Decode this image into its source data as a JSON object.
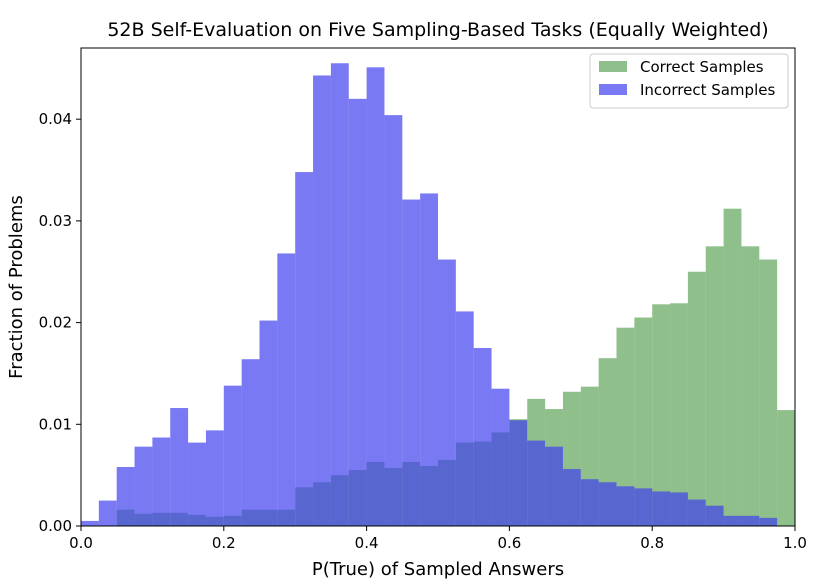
{
  "chart_data": {
    "type": "histogram",
    "title": "52B Self-Evaluation on Five Sampling-Based Tasks (Equally Weighted)",
    "xlabel": "P(True) of Sampled Answers",
    "ylabel": "Fraction of Problems",
    "xlim": [
      0.0,
      1.0
    ],
    "ylim": [
      0.0,
      0.047
    ],
    "xticks": [
      "0.0",
      "0.2",
      "0.4",
      "0.6",
      "0.8",
      "1.0"
    ],
    "xtick_values": [
      0.0,
      0.2,
      0.4,
      0.6,
      0.8,
      1.0
    ],
    "yticks": [
      "0.00",
      "0.01",
      "0.02",
      "0.03",
      "0.04"
    ],
    "ytick_values": [
      0.0,
      0.01,
      0.02,
      0.03,
      0.04
    ],
    "bin_width": 0.025,
    "bin_starts": [
      0.0,
      0.025,
      0.05,
      0.075,
      0.1,
      0.125,
      0.15,
      0.175,
      0.2,
      0.225,
      0.25,
      0.275,
      0.3,
      0.325,
      0.35,
      0.375,
      0.4,
      0.425,
      0.45,
      0.475,
      0.5,
      0.525,
      0.55,
      0.575,
      0.6,
      0.625,
      0.65,
      0.675,
      0.7,
      0.725,
      0.75,
      0.775,
      0.8,
      0.825,
      0.85,
      0.875,
      0.9,
      0.925,
      0.95,
      0.975
    ],
    "grid": false,
    "legend_position": "top-right",
    "series": [
      {
        "name": "Correct Samples",
        "color": "#5fa55a",
        "values": [
          0.0,
          0.0,
          0.0016,
          0.0012,
          0.0013,
          0.0013,
          0.0011,
          0.0009,
          0.001,
          0.0016,
          0.0016,
          0.0016,
          0.0038,
          0.0043,
          0.005,
          0.0055,
          0.0063,
          0.0057,
          0.0063,
          0.0059,
          0.0065,
          0.0082,
          0.0083,
          0.0092,
          0.0105,
          0.0125,
          0.0115,
          0.0132,
          0.0137,
          0.0165,
          0.0195,
          0.0205,
          0.0218,
          0.0219,
          0.025,
          0.0275,
          0.0312,
          0.0275,
          0.0262,
          0.0114
        ]
      },
      {
        "name": "Incorrect Samples",
        "color": "#4040ee",
        "values": [
          0.0005,
          0.0025,
          0.0058,
          0.0078,
          0.0087,
          0.0116,
          0.0082,
          0.0094,
          0.0138,
          0.0164,
          0.0202,
          0.0268,
          0.0348,
          0.0443,
          0.0455,
          0.042,
          0.0451,
          0.0404,
          0.0321,
          0.0327,
          0.0262,
          0.0211,
          0.0175,
          0.0135,
          0.0104,
          0.0084,
          0.0078,
          0.0056,
          0.0046,
          0.0043,
          0.0039,
          0.0037,
          0.0034,
          0.0033,
          0.0026,
          0.002,
          0.001,
          0.001,
          0.0008,
          0.0
        ]
      }
    ]
  }
}
